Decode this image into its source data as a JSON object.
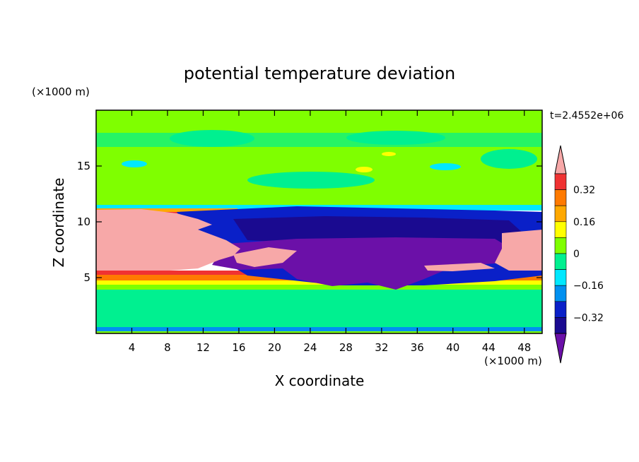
{
  "chart_data": {
    "type": "heatmap",
    "title": "potential temperature deviation",
    "time_label": "t=2.4552e+06",
    "xlabel": "X coordinate",
    "ylabel": "Z coordinate",
    "x_unit": "(×1000 m)",
    "y_unit": "(×1000 m)",
    "xlim": [
      0,
      50
    ],
    "ylim": [
      0,
      20
    ],
    "x_ticks": [
      "4",
      "8",
      "12",
      "16",
      "20",
      "24",
      "28",
      "32",
      "36",
      "40",
      "44",
      "48"
    ],
    "y_ticks": [
      "5",
      "10",
      "15"
    ],
    "colorbar": {
      "levels": [
        -0.4,
        -0.32,
        -0.24,
        -0.16,
        -0.08,
        0,
        0.08,
        0.16,
        0.24,
        0.32,
        0.4
      ],
      "labels": [
        "0.32",
        "0.16",
        "0",
        "−0.16",
        "−0.32"
      ],
      "colors_high_to_low": [
        "#f7a8a8",
        "#f03232",
        "#ff7a00",
        "#ffa800",
        "#ffff00",
        "#7fff00",
        "#00f090",
        "#00e8ff",
        "#0090f0",
        "#0a20c8",
        "#1a0a90",
        "#6b10a8"
      ]
    }
  }
}
